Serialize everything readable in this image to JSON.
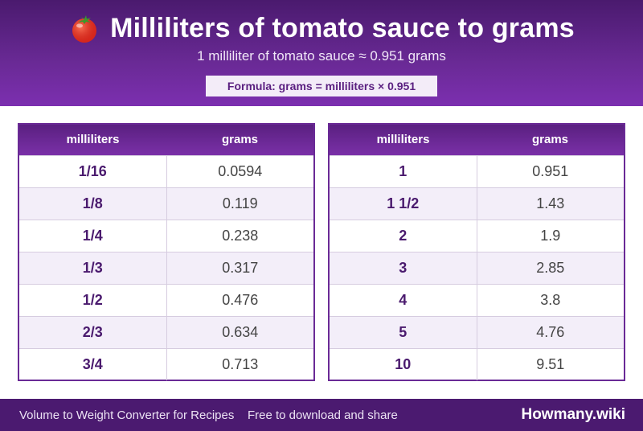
{
  "header": {
    "title": "Milliliters of tomato sauce to grams",
    "subtitle": "1 milliliter of tomato sauce ≈ 0.951 grams",
    "formula": "Formula: grams = milliliters × 0.951",
    "icon": "tomato-icon",
    "colors": {
      "header_bg": "#6a2a96",
      "accent": "#4a1a6e"
    }
  },
  "tables": {
    "left": {
      "headers": [
        "milliliters",
        "grams"
      ],
      "rows": [
        [
          "1/16",
          "0.0594"
        ],
        [
          "1/8",
          "0.119"
        ],
        [
          "1/4",
          "0.238"
        ],
        [
          "1/3",
          "0.317"
        ],
        [
          "1/2",
          "0.476"
        ],
        [
          "2/3",
          "0.634"
        ],
        [
          "3/4",
          "0.713"
        ]
      ]
    },
    "right": {
      "headers": [
        "milliliters",
        "grams"
      ],
      "rows": [
        [
          "1",
          "0.951"
        ],
        [
          "1 1/2",
          "1.43"
        ],
        [
          "2",
          "1.9"
        ],
        [
          "3",
          "2.85"
        ],
        [
          "4",
          "3.8"
        ],
        [
          "5",
          "4.76"
        ],
        [
          "10",
          "9.51"
        ]
      ]
    }
  },
  "footer": {
    "left": "Volume to Weight Converter for Recipes",
    "middle": "Free to download and share",
    "brand": "Howmany.wiki"
  }
}
